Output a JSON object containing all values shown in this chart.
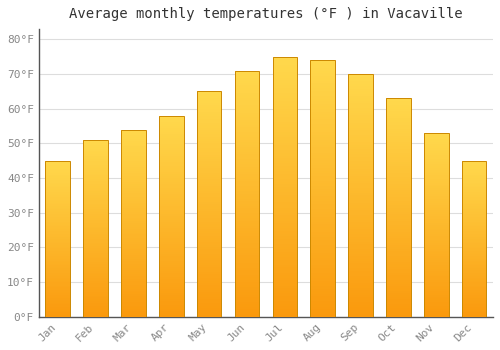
{
  "title": "Average monthly temperatures (°F ) in Vacaville",
  "months": [
    "Jan",
    "Feb",
    "Mar",
    "Apr",
    "May",
    "Jun",
    "Jul",
    "Aug",
    "Sep",
    "Oct",
    "Nov",
    "Dec"
  ],
  "values": [
    45,
    51,
    54,
    58,
    65,
    71,
    75,
    74,
    70,
    63,
    53,
    45
  ],
  "bar_color_main": "#FFA500",
  "bar_color_light": "#FFD966",
  "bar_edge_color": "#CC8800",
  "background_color": "#FFFFFF",
  "plot_bg_color": "#FFFFFF",
  "grid_color": "#DDDDDD",
  "title_fontsize": 10,
  "tick_fontsize": 8,
  "ytick_labels": [
    "0°F",
    "10°F",
    "20°F",
    "30°F",
    "40°F",
    "50°F",
    "60°F",
    "70°F",
    "80°F"
  ],
  "ytick_values": [
    0,
    10,
    20,
    30,
    40,
    50,
    60,
    70,
    80
  ],
  "ylim": [
    0,
    83
  ],
  "title_color": "#333333",
  "tick_color": "#888888",
  "font_family": "monospace"
}
